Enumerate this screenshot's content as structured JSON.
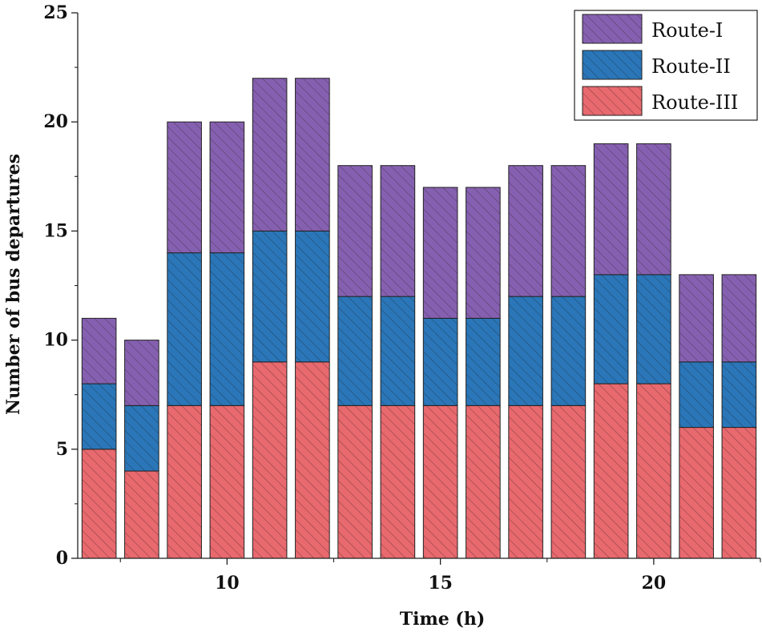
{
  "chart_data": {
    "type": "bar",
    "stacked": true,
    "title": "",
    "xlabel": "Time (h)",
    "ylabel": "Number of bus departures",
    "x": [
      7,
      8,
      9,
      10,
      11,
      12,
      13,
      14,
      15,
      16,
      17,
      18,
      19,
      20,
      21,
      22
    ],
    "xlim": [
      6.5,
      22.5
    ],
    "ylim": [
      0,
      25
    ],
    "x_ticks": [
      10,
      15,
      20
    ],
    "y_ticks": [
      0,
      5,
      10,
      15,
      20,
      25
    ],
    "series": [
      {
        "name": "Route-III",
        "color": "#e8696e",
        "values": [
          5,
          4,
          7,
          7,
          9,
          9,
          7,
          7,
          7,
          7,
          7,
          7,
          8,
          8,
          6,
          6
        ]
      },
      {
        "name": "Route-II",
        "color": "#2a76b8",
        "values": [
          3,
          3,
          7,
          7,
          6,
          6,
          5,
          5,
          4,
          4,
          5,
          5,
          5,
          5,
          3,
          3
        ]
      },
      {
        "name": "Route-I",
        "color": "#8660b0",
        "values": [
          3,
          3,
          6,
          6,
          7,
          7,
          6,
          6,
          6,
          6,
          6,
          6,
          6,
          6,
          4,
          4
        ]
      }
    ],
    "legend": {
      "position": "top-right",
      "order": [
        "Route-I",
        "Route-II",
        "Route-III"
      ]
    },
    "grid": false,
    "hatch": "diagonal"
  }
}
